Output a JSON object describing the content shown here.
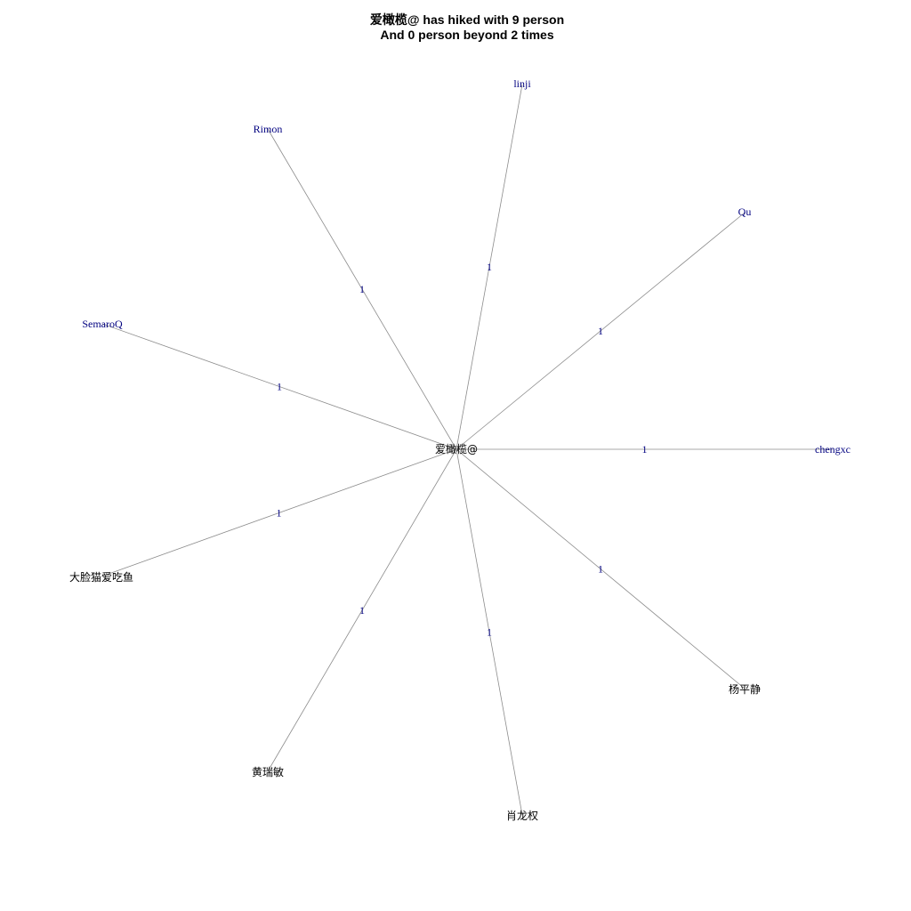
{
  "title": {
    "line1": "爱橄榄@ has hiked with 9 person",
    "line2": "And 0 person beyond 2 times"
  },
  "graph": {
    "center": {
      "id": "center",
      "label": "爱橄榄@"
    },
    "nodes": [
      {
        "id": "linji",
        "label": "linji",
        "weight": "1"
      },
      {
        "id": "rimon",
        "label": "Rimon",
        "weight": "1"
      },
      {
        "id": "qu",
        "label": "Qu",
        "weight": "1"
      },
      {
        "id": "semaroq",
        "label": "SemaroQ",
        "weight": "1"
      },
      {
        "id": "chengxc",
        "label": "chengxc",
        "weight": "1"
      },
      {
        "id": "dalianmao",
        "label": "大脸猫爱吃鱼",
        "weight": "1"
      },
      {
        "id": "yangpingjing",
        "label": "杨平静",
        "weight": "1"
      },
      {
        "id": "huangruimin",
        "label": "黄瑞敏",
        "weight": "1"
      },
      {
        "id": "xiaolongquan",
        "label": "肖龙权",
        "weight": "1"
      }
    ]
  }
}
